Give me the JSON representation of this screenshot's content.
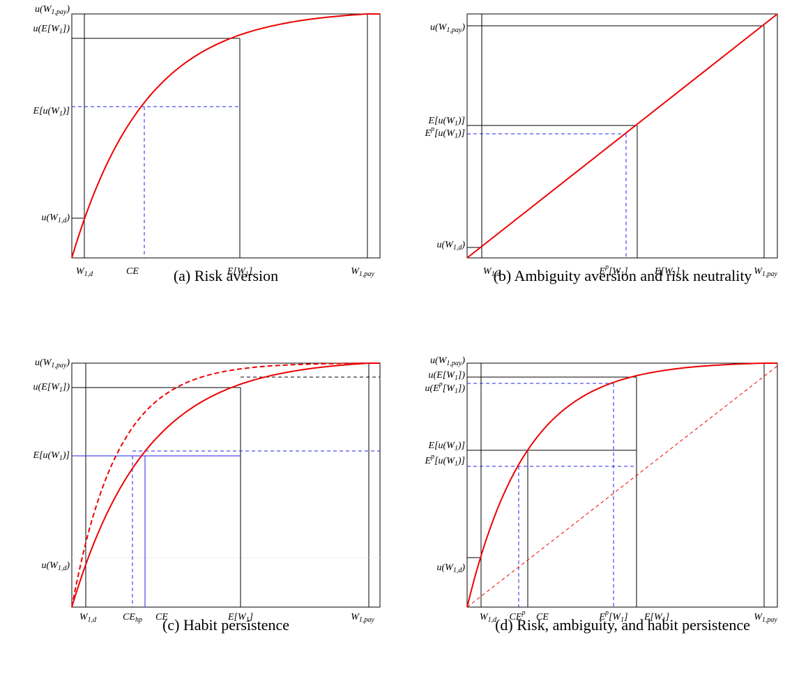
{
  "panels": [
    {
      "caption": "(a) Risk aversion",
      "y_labels": [
        "u(W_{1,pay})",
        "u(E[W_1])",
        "E[u(W_1)]",
        "u(W_{1,d})"
      ],
      "x_labels": [
        "W_{1,d}",
        "CE",
        "E[W_1]",
        "W_{1,pay}"
      ]
    },
    {
      "caption": "(b) Ambiguity aversion and risk neutrality",
      "y_labels": [
        "u(W_{1,pay})",
        "E[u(W_1)]",
        "E^{p}[u(W_1)]",
        "u(W_{1,d})"
      ],
      "x_labels": [
        "W_{1,d}",
        "E^{p}[W_1]",
        "E[W_1]",
        "W_{1,pay}"
      ]
    },
    {
      "caption": "(c) Habit persistence",
      "y_labels": [
        "u(W_{1,pay})",
        "u(E[W_1])",
        "E[u(W_1)]",
        "u(W_{1,d})"
      ],
      "x_labels": [
        "W_{1,d}",
        "CE_{hp}",
        "CE",
        "E[W_1]",
        "W_{1,pay}"
      ]
    },
    {
      "caption": "(d) Risk, ambiguity, and habit persistence",
      "y_labels": [
        "u(W_{1,pay})",
        "u(E[W_1])",
        "u(E^{p}[W_1])",
        "E[u(W_1)]",
        "E^{p}[u(W_1)]",
        "u(W_{1,d})"
      ],
      "x_labels": [
        "W_{1,d}",
        "CE^{p}",
        "CE",
        "E^{p}[W_1]",
        "E[W_1]",
        "W_{1,pay}"
      ]
    }
  ]
}
